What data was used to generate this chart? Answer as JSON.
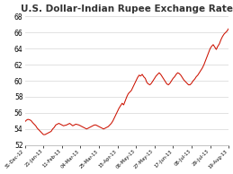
{
  "title": "U.S. Dollar-Indian Rupee Exchange Rate",
  "line_color": "#cc1100",
  "bg_color": "#ffffff",
  "plot_bg_color": "#ffffff",
  "grid_color": "#dddddd",
  "ylim": [
    52,
    68
  ],
  "yticks": [
    52,
    54,
    56,
    58,
    60,
    62,
    64,
    66,
    68
  ],
  "x_labels": [
    "31-Dec-12",
    "21-Jan-13",
    "11-Feb-13",
    "04-Mar-13",
    "25-Mar-13",
    "15-Apr-13",
    "06-May-13",
    "27-May-13",
    "17-Jun-13",
    "08-Jul-13",
    "29-Jul-13",
    "19-Aug-13"
  ],
  "data": [
    54.9,
    55.1,
    55.2,
    55.15,
    55.05,
    54.8,
    54.6,
    54.4,
    54.1,
    53.9,
    53.7,
    53.5,
    53.3,
    53.3,
    53.4,
    53.5,
    53.6,
    53.7,
    54.0,
    54.2,
    54.5,
    54.6,
    54.7,
    54.6,
    54.5,
    54.4,
    54.45,
    54.5,
    54.6,
    54.7,
    54.55,
    54.4,
    54.5,
    54.6,
    54.55,
    54.5,
    54.4,
    54.3,
    54.2,
    54.1,
    54.0,
    54.1,
    54.2,
    54.3,
    54.4,
    54.5,
    54.5,
    54.4,
    54.3,
    54.2,
    54.1,
    54.0,
    54.1,
    54.2,
    54.3,
    54.5,
    54.7,
    55.0,
    55.4,
    55.8,
    56.2,
    56.6,
    56.9,
    57.2,
    57.0,
    57.5,
    58.0,
    58.4,
    58.6,
    58.8,
    59.2,
    59.6,
    60.0,
    60.4,
    60.7,
    60.6,
    60.8,
    60.5,
    60.3,
    59.8,
    59.6,
    59.5,
    59.7,
    60.0,
    60.3,
    60.6,
    60.8,
    61.0,
    60.8,
    60.5,
    60.2,
    59.9,
    59.6,
    59.5,
    59.7,
    60.0,
    60.3,
    60.5,
    60.8,
    61.0,
    60.9,
    60.7,
    60.4,
    60.1,
    59.9,
    59.7,
    59.5,
    59.5,
    59.7,
    60.0,
    60.2,
    60.5,
    60.7,
    61.0,
    61.3,
    61.6,
    62.0,
    62.5,
    63.0,
    63.5,
    64.0,
    64.3,
    64.5,
    64.2,
    63.9,
    64.3,
    64.6,
    65.1,
    65.5,
    65.8,
    66.0,
    66.2,
    66.5
  ]
}
